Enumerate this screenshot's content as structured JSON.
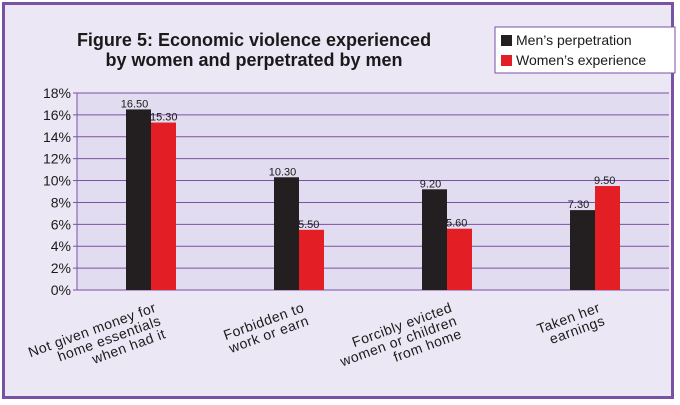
{
  "chart_data": {
    "type": "bar",
    "title": "Figure 5: Economic violence experienced by women and perpetrated by men",
    "title_lines": [
      "Figure 5: Economic violence experienced",
      "by women and perpetrated by men"
    ],
    "categories": [
      [
        "Not given money for",
        "home essentials",
        "when had it"
      ],
      [
        "Forbidden to",
        "work or earn"
      ],
      [
        "Forcibly evicted",
        "women or children",
        "from home"
      ],
      [
        "Taken her",
        "earnings"
      ]
    ],
    "series": [
      {
        "name": "Men’s perpetration",
        "values": [
          16.5,
          10.3,
          9.2,
          7.3
        ],
        "labels": [
          "16.50",
          "10.30",
          "9.20",
          "7.30"
        ],
        "color": "#231f20"
      },
      {
        "name": "Women’s experience",
        "values": [
          15.3,
          5.5,
          5.6,
          9.5
        ],
        "labels": [
          "15.30",
          "5.50",
          "5.60",
          "9.50"
        ],
        "color": "#e31e24"
      }
    ],
    "yticks": [
      "0%",
      "2%",
      "4%",
      "6%",
      "8%",
      "10%",
      "12%",
      "14%",
      "16%",
      "18%"
    ],
    "ylim": [
      0,
      18
    ],
    "grid": true,
    "legend_position": "top-right",
    "colors": {
      "frame": "#7a52a4",
      "background": "#ece7f4",
      "plot_area": "#e2dcf0",
      "gridline": "#7a52a4"
    }
  }
}
